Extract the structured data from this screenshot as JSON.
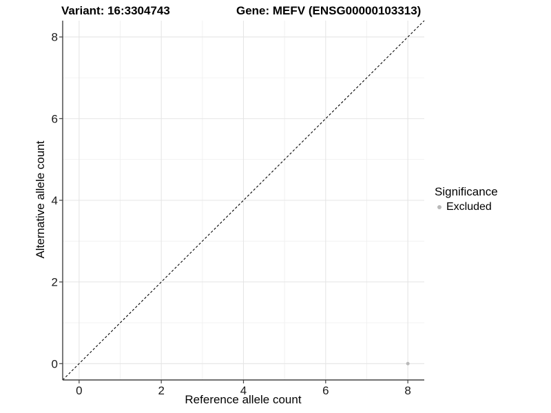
{
  "title": {
    "variant": "Variant: 16:3304743",
    "gene": "Gene: MEFV (ENSG00000103313)"
  },
  "axes": {
    "x_label": "Reference allele count",
    "y_label": "Alternative allele count"
  },
  "legend": {
    "title": "Significance",
    "entries": [
      {
        "label": "Excluded",
        "color": "#b9b9b9"
      }
    ]
  },
  "chart_data": {
    "type": "scatter",
    "title": "Variant: 16:3304743   Gene: MEFV (ENSG00000103313)",
    "xlabel": "Reference allele count",
    "ylabel": "Alternative allele count",
    "xlim": [
      -0.4,
      8.4
    ],
    "ylim": [
      -0.4,
      8.4
    ],
    "x_ticks": [
      0,
      2,
      4,
      6,
      8
    ],
    "y_ticks": [
      0,
      2,
      4,
      6,
      8
    ],
    "x_minor_ticks": [
      1,
      3,
      5,
      7
    ],
    "y_minor_ticks": [
      1,
      3,
      5,
      7
    ],
    "grid": true,
    "legend_position": "right",
    "identity_line": {
      "style": "dashed",
      "x1": -0.4,
      "y1": -0.4,
      "x2": 8.4,
      "y2": 8.4,
      "color": "#000000"
    },
    "series": [
      {
        "name": "Excluded",
        "color": "#b9b9b9",
        "point_radius": 2.5,
        "points": [
          {
            "x": 8,
            "y": 0
          }
        ]
      }
    ],
    "colors": {
      "grid_major": "#e5e5e5",
      "grid_minor": "#f0f0f0",
      "axis": "#404040",
      "tick_text": "#1a1a1a"
    }
  }
}
